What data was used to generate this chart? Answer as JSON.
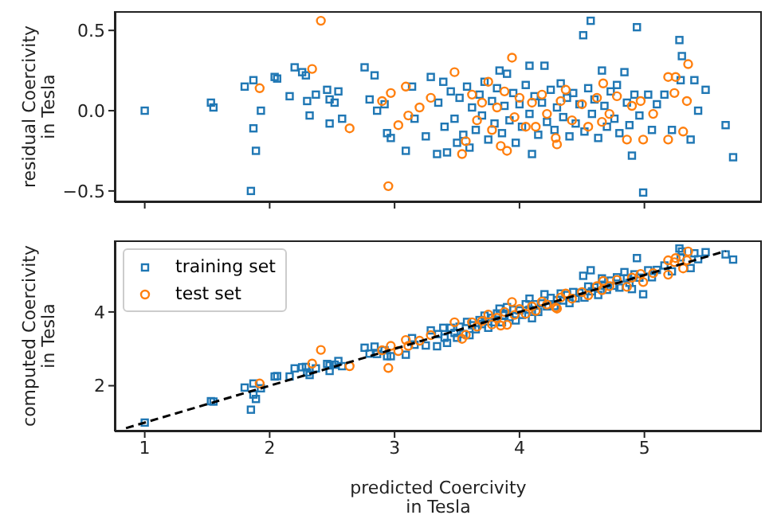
{
  "chart_data": [
    {
      "type": "scatter",
      "ylabel": "residual Coercivity\nin Tesla",
      "xlim": [
        0.76,
        5.94
      ],
      "ylim": [
        -0.57,
        0.62
      ],
      "xticks": [
        {
          "value": 1,
          "label": null
        },
        {
          "value": 2,
          "label": null
        },
        {
          "value": 3,
          "label": null
        },
        {
          "value": 4,
          "label": null
        },
        {
          "value": 5,
          "label": null
        }
      ],
      "yticks": [
        {
          "value": -0.5,
          "label": "−0.5"
        },
        {
          "value": 0,
          "label": "0.0"
        },
        {
          "value": 0.5,
          "label": "0.5"
        }
      ],
      "tick_labels": "y",
      "series": [
        {
          "color": "#1f77b4",
          "marker": "square",
          "x": [
            1.0,
            1.53,
            1.55,
            1.8,
            1.87,
            1.87,
            1.89,
            1.85,
            1.93,
            2.04,
            2.06,
            2.16,
            2.2,
            2.26,
            2.29,
            2.3,
            2.32,
            2.37,
            2.46,
            2.48,
            2.48,
            2.52,
            2.55,
            2.58,
            2.76,
            2.8,
            2.84,
            2.86,
            2.92,
            2.94,
            2.97,
            3.09,
            3.14,
            3.16,
            3.25,
            3.29,
            3.34,
            3.39,
            3.42,
            3.5,
            3.6,
            3.35,
            3.4,
            3.45,
            3.48,
            3.52,
            3.55,
            3.58,
            3.62,
            3.65,
            3.68,
            3.7,
            3.72,
            3.75,
            3.78,
            3.8,
            3.82,
            3.84,
            3.86,
            3.88,
            3.9,
            3.92,
            3.95,
            3.97,
            4.0,
            4.02,
            4.05,
            4.08,
            4.08,
            4.1,
            4.12,
            4.15,
            4.18,
            4.2,
            4.22,
            4.25,
            4.28,
            4.3,
            4.33,
            4.35,
            4.38,
            4.4,
            4.43,
            4.45,
            4.48,
            4.51,
            4.52,
            4.55,
            4.57,
            4.58,
            4.6,
            4.63,
            4.66,
            4.68,
            4.7,
            4.73,
            4.76,
            4.78,
            4.8,
            4.84,
            4.86,
            4.88,
            4.9,
            4.92,
            4.94,
            4.96,
            4.99,
            5.03,
            5.06,
            5.1,
            5.16,
            5.22,
            5.28,
            5.29,
            5.3,
            5.37,
            5.4,
            5.43,
            5.49,
            5.65,
            5.71
          ],
          "values": [
            0.0,
            0.05,
            0.02,
            0.15,
            0.19,
            -0.11,
            -0.25,
            -0.5,
            0.0,
            0.21,
            0.2,
            0.09,
            0.27,
            0.24,
            0.22,
            0.06,
            -0.03,
            0.1,
            0.13,
            0.07,
            -0.08,
            0.05,
            0.12,
            -0.05,
            0.27,
            0.07,
            0.22,
            0.0,
            0.04,
            -0.14,
            -0.17,
            -0.25,
            0.15,
            -0.05,
            -0.16,
            0.21,
            -0.27,
            0.18,
            -0.26,
            -0.2,
            -0.23,
            0.05,
            -0.1,
            0.12,
            -0.05,
            0.08,
            -0.15,
            0.15,
            0.02,
            -0.12,
            0.1,
            -0.03,
            0.18,
            -0.18,
            0.06,
            -0.08,
            0.14,
            0.25,
            -0.14,
            0.03,
            0.23,
            -0.06,
            0.11,
            -0.2,
            0.04,
            -0.1,
            0.16,
            0.28,
            -0.02,
            -0.27,
            0.09,
            -0.15,
            0.05,
            0.28,
            -0.07,
            0.13,
            -0.12,
            0.02,
            0.17,
            -0.04,
            0.08,
            -0.16,
            0.11,
            -0.08,
            0.04,
            0.47,
            -0.13,
            0.14,
            0.56,
            -0.02,
            0.07,
            -0.17,
            0.25,
            0.03,
            -0.1,
            0.12,
            -0.05,
            0.16,
            -0.14,
            0.24,
            0.05,
            -0.09,
            -0.28,
            0.1,
            0.52,
            -0.03,
            -0.51,
            0.1,
            -0.12,
            0.04,
            0.1,
            -0.12,
            0.44,
            0.19,
            0.34,
            -0.18,
            0.19,
            0.0,
            0.13,
            -0.09,
            -0.29
          ]
        },
        {
          "color": "#ff7f0e",
          "marker": "circle",
          "x": [
            1.92,
            2.34,
            2.41,
            2.64,
            2.9,
            2.95,
            2.97,
            3.03,
            3.09,
            3.11,
            3.2,
            3.29,
            3.48,
            3.54,
            3.57,
            3.62,
            3.66,
            3.7,
            3.75,
            3.78,
            3.82,
            3.85,
            3.88,
            3.9,
            3.94,
            3.96,
            4.0,
            4.05,
            4.1,
            4.13,
            4.18,
            4.22,
            4.29,
            4.3,
            4.33,
            4.37,
            4.42,
            4.5,
            4.55,
            4.62,
            4.66,
            4.67,
            4.72,
            4.78,
            4.86,
            4.9,
            4.97,
            4.99,
            5.07,
            5.19,
            5.19,
            5.24,
            5.25,
            5.31,
            5.34,
            5.35
          ],
          "values": [
            0.14,
            0.26,
            0.56,
            -0.11,
            0.06,
            -0.47,
            0.11,
            -0.09,
            0.15,
            -0.03,
            0.02,
            0.08,
            0.24,
            -0.27,
            -0.19,
            0.1,
            -0.06,
            0.05,
            0.18,
            -0.12,
            0.02,
            -0.22,
            0.12,
            -0.25,
            0.33,
            -0.04,
            0.08,
            -0.1,
            0.05,
            -0.1,
            0.1,
            -0.02,
            -0.17,
            -0.21,
            0.06,
            0.13,
            -0.06,
            0.04,
            -0.1,
            0.08,
            -0.07,
            0.17,
            -0.02,
            0.09,
            -0.18,
            0.03,
            0.06,
            -0.18,
            -0.02,
            -0.18,
            0.21,
            0.11,
            0.21,
            -0.13,
            0.06,
            0.29
          ]
        }
      ]
    },
    {
      "type": "scatter",
      "xlabel": "predicted Coercivity\nin Tesla",
      "ylabel": "computed Coercivity\nin Tesla",
      "xlim": [
        0.76,
        5.94
      ],
      "ylim": [
        0.76,
        5.94
      ],
      "xticks": [
        1,
        2,
        3,
        4,
        5
      ],
      "yticks": [
        2,
        4
      ],
      "legend": "top left",
      "series": [
        {
          "name": "training set",
          "color": "#1f77b4",
          "marker": "square",
          "x": [
            1.0,
            1.53,
            1.55,
            1.8,
            1.87,
            1.87,
            1.89,
            1.85,
            1.93,
            2.04,
            2.06,
            2.16,
            2.2,
            2.26,
            2.29,
            2.3,
            2.32,
            2.37,
            2.46,
            2.48,
            2.48,
            2.52,
            2.55,
            2.58,
            2.76,
            2.8,
            2.84,
            2.86,
            2.92,
            2.94,
            2.97,
            3.09,
            3.14,
            3.16,
            3.25,
            3.29,
            3.34,
            3.39,
            3.42,
            3.5,
            3.6,
            3.35,
            3.4,
            3.45,
            3.48,
            3.52,
            3.55,
            3.58,
            3.62,
            3.65,
            3.68,
            3.7,
            3.72,
            3.75,
            3.78,
            3.8,
            3.82,
            3.84,
            3.86,
            3.88,
            3.9,
            3.92,
            3.95,
            3.97,
            4.0,
            4.02,
            4.05,
            4.08,
            4.08,
            4.1,
            4.12,
            4.15,
            4.18,
            4.2,
            4.22,
            4.25,
            4.28,
            4.3,
            4.33,
            4.35,
            4.38,
            4.4,
            4.43,
            4.45,
            4.48,
            4.51,
            4.52,
            4.55,
            4.57,
            4.58,
            4.6,
            4.63,
            4.66,
            4.68,
            4.7,
            4.73,
            4.76,
            4.78,
            4.8,
            4.84,
            4.86,
            4.88,
            4.9,
            4.92,
            4.94,
            4.96,
            4.99,
            5.03,
            5.06,
            5.1,
            5.16,
            5.22,
            5.28,
            5.29,
            5.3,
            5.37,
            5.4,
            5.43,
            5.49,
            5.65,
            5.71
          ],
          "values": [
            1.0,
            1.58,
            1.57,
            1.95,
            2.06,
            1.76,
            1.64,
            1.35,
            1.93,
            2.25,
            2.26,
            2.25,
            2.47,
            2.5,
            2.51,
            2.36,
            2.29,
            2.47,
            2.59,
            2.55,
            2.4,
            2.57,
            2.67,
            2.53,
            3.03,
            2.87,
            3.06,
            2.86,
            2.96,
            2.8,
            2.8,
            2.84,
            3.29,
            3.11,
            3.09,
            3.5,
            3.07,
            3.57,
            3.16,
            3.3,
            3.37,
            3.4,
            3.3,
            3.57,
            3.43,
            3.6,
            3.4,
            3.73,
            3.64,
            3.53,
            3.78,
            3.67,
            3.9,
            3.57,
            3.84,
            3.72,
            3.96,
            4.09,
            3.72,
            3.91,
            4.13,
            3.86,
            4.06,
            3.77,
            4.04,
            3.92,
            4.21,
            4.36,
            4.06,
            3.83,
            4.21,
            4.0,
            4.23,
            4.48,
            4.15,
            4.38,
            4.16,
            4.32,
            4.5,
            4.31,
            4.46,
            4.24,
            4.54,
            4.37,
            4.52,
            4.98,
            4.39,
            4.69,
            5.13,
            4.56,
            4.67,
            4.46,
            4.91,
            4.71,
            4.6,
            4.85,
            4.71,
            4.94,
            4.66,
            5.08,
            4.91,
            4.79,
            4.62,
            5.02,
            5.46,
            4.93,
            4.48,
            5.13,
            4.94,
            5.14,
            5.26,
            5.1,
            5.72,
            5.48,
            5.64,
            5.19,
            5.59,
            5.43,
            5.62,
            5.56,
            5.42
          ]
        },
        {
          "name": "test set",
          "color": "#ff7f0e",
          "marker": "circle",
          "x": [
            1.92,
            2.34,
            2.41,
            2.64,
            2.9,
            2.95,
            2.97,
            3.03,
            3.09,
            3.11,
            3.2,
            3.29,
            3.48,
            3.54,
            3.57,
            3.62,
            3.66,
            3.7,
            3.75,
            3.78,
            3.82,
            3.85,
            3.88,
            3.9,
            3.94,
            3.96,
            4.0,
            4.05,
            4.1,
            4.13,
            4.18,
            4.22,
            4.29,
            4.3,
            4.33,
            4.37,
            4.42,
            4.5,
            4.55,
            4.62,
            4.66,
            4.67,
            4.72,
            4.78,
            4.86,
            4.9,
            4.97,
            4.99,
            5.07,
            5.19,
            5.19,
            5.24,
            5.25,
            5.31,
            5.34,
            5.35
          ],
          "values": [
            2.06,
            2.6,
            2.97,
            2.53,
            2.96,
            2.48,
            3.08,
            2.94,
            3.24,
            3.08,
            3.22,
            3.37,
            3.72,
            3.27,
            3.38,
            3.72,
            3.6,
            3.75,
            3.93,
            3.66,
            3.84,
            3.63,
            4.0,
            3.65,
            4.27,
            3.92,
            4.08,
            3.95,
            4.15,
            4.03,
            4.28,
            4.2,
            4.12,
            4.09,
            4.39,
            4.5,
            4.36,
            4.54,
            4.45,
            4.7,
            4.59,
            4.84,
            4.7,
            4.87,
            4.68,
            4.93,
            5.03,
            4.81,
            5.05,
            5.01,
            5.4,
            5.35,
            5.46,
            5.18,
            5.4,
            5.64
          ]
        },
        {
          "type": "line",
          "color": "#000000",
          "marker": "none",
          "line_style": "dashed",
          "x": [
            0.85,
            5.65
          ],
          "values": [
            0.85,
            5.65
          ]
        }
      ]
    }
  ]
}
